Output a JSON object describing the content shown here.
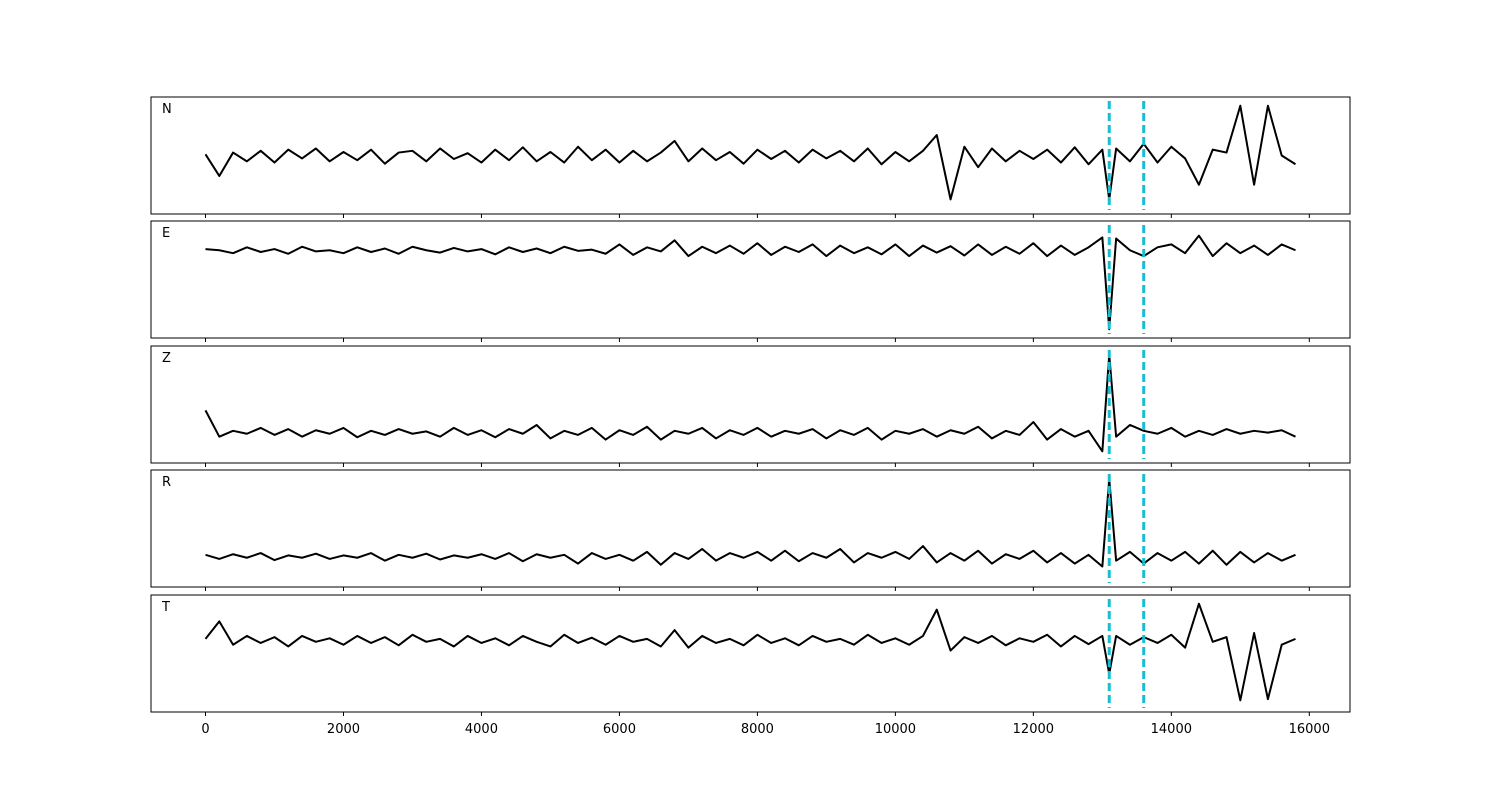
{
  "chart_data": {
    "type": "line",
    "x": [
      0,
      200,
      400,
      600,
      800,
      1000,
      1200,
      1400,
      1600,
      1800,
      2000,
      2200,
      2400,
      2600,
      2800,
      3000,
      3200,
      3400,
      3600,
      3800,
      4000,
      4200,
      4400,
      4600,
      4800,
      5000,
      5200,
      5400,
      5600,
      5800,
      6000,
      6200,
      6400,
      6600,
      6800,
      7000,
      7200,
      7400,
      7600,
      7800,
      8000,
      8200,
      8400,
      8600,
      8800,
      9000,
      9200,
      9400,
      9600,
      9800,
      10000,
      10200,
      10400,
      10600,
      10800,
      11000,
      11200,
      11400,
      11600,
      11800,
      12000,
      12200,
      12400,
      12600,
      12800,
      13000,
      13100,
      13200,
      13400,
      13600,
      13800,
      14000,
      14200,
      14400,
      14600,
      14800,
      15000,
      15200,
      15400,
      15600,
      15800
    ],
    "xlim": [
      -790,
      16590
    ],
    "xticks": [
      0,
      2000,
      4000,
      6000,
      8000,
      10000,
      12000,
      14000,
      16000
    ],
    "ylim": [
      -1,
      1
    ],
    "vlines": [
      13100,
      13600
    ],
    "vline_color": "#17becf",
    "series": [
      {
        "name": "N",
        "color": "#000000",
        "values": [
          0.02,
          -0.35,
          0.05,
          -0.1,
          0.08,
          -0.12,
          0.1,
          -0.05,
          0.12,
          -0.1,
          0.06,
          -0.08,
          0.1,
          -0.14,
          0.05,
          0.08,
          -0.1,
          0.12,
          -0.06,
          0.04,
          -0.12,
          0.1,
          -0.08,
          0.14,
          -0.1,
          0.06,
          -0.12,
          0.15,
          -0.08,
          0.1,
          -0.12,
          0.08,
          -0.1,
          0.05,
          0.25,
          -0.1,
          0.12,
          -0.08,
          0.06,
          -0.14,
          0.1,
          -0.06,
          0.08,
          -0.12,
          0.1,
          -0.05,
          0.08,
          -0.1,
          0.12,
          -0.15,
          0.06,
          -0.1,
          0.08,
          0.35,
          -0.75,
          0.15,
          -0.2,
          0.12,
          -0.1,
          0.08,
          -0.06,
          0.1,
          -0.12,
          0.14,
          -0.15,
          0.1,
          -0.75,
          0.12,
          -0.1,
          0.2,
          -0.12,
          0.15,
          -0.05,
          -0.5,
          0.1,
          0.05,
          0.85,
          -0.5,
          0.85,
          0.0,
          -0.15
        ]
      },
      {
        "name": "E",
        "color": "#000000",
        "values": [
          0.52,
          0.5,
          0.45,
          0.55,
          0.47,
          0.52,
          0.44,
          0.56,
          0.48,
          0.5,
          0.45,
          0.55,
          0.47,
          0.53,
          0.44,
          0.56,
          0.5,
          0.46,
          0.54,
          0.48,
          0.52,
          0.43,
          0.55,
          0.47,
          0.53,
          0.45,
          0.56,
          0.49,
          0.51,
          0.44,
          0.6,
          0.42,
          0.55,
          0.48,
          0.67,
          0.4,
          0.56,
          0.45,
          0.58,
          0.44,
          0.62,
          0.42,
          0.56,
          0.47,
          0.6,
          0.4,
          0.58,
          0.45,
          0.55,
          0.43,
          0.6,
          0.4,
          0.58,
          0.46,
          0.57,
          0.41,
          0.6,
          0.42,
          0.56,
          0.44,
          0.62,
          0.4,
          0.58,
          0.42,
          0.55,
          0.72,
          -0.85,
          0.7,
          0.5,
          0.4,
          0.55,
          0.6,
          0.45,
          0.75,
          0.4,
          0.62,
          0.45,
          0.58,
          0.42,
          0.6,
          0.5
        ]
      },
      {
        "name": "Z",
        "color": "#000000",
        "values": [
          -0.1,
          -0.55,
          -0.45,
          -0.5,
          -0.4,
          -0.52,
          -0.42,
          -0.55,
          -0.44,
          -0.5,
          -0.4,
          -0.56,
          -0.45,
          -0.52,
          -0.42,
          -0.5,
          -0.46,
          -0.55,
          -0.4,
          -0.52,
          -0.44,
          -0.56,
          -0.42,
          -0.5,
          -0.35,
          -0.58,
          -0.45,
          -0.52,
          -0.4,
          -0.6,
          -0.44,
          -0.52,
          -0.38,
          -0.6,
          -0.45,
          -0.5,
          -0.4,
          -0.58,
          -0.44,
          -0.52,
          -0.4,
          -0.55,
          -0.45,
          -0.5,
          -0.42,
          -0.58,
          -0.44,
          -0.52,
          -0.4,
          -0.6,
          -0.45,
          -0.5,
          -0.42,
          -0.55,
          -0.44,
          -0.5,
          -0.38,
          -0.58,
          -0.45,
          -0.52,
          -0.3,
          -0.6,
          -0.42,
          -0.55,
          -0.45,
          -0.8,
          0.85,
          -0.55,
          -0.35,
          -0.45,
          -0.5,
          -0.4,
          -0.55,
          -0.45,
          -0.52,
          -0.42,
          -0.5,
          -0.45,
          -0.48,
          -0.44,
          -0.55
        ]
      },
      {
        "name": "R",
        "color": "#000000",
        "values": [
          -0.45,
          -0.52,
          -0.44,
          -0.5,
          -0.42,
          -0.54,
          -0.46,
          -0.5,
          -0.43,
          -0.52,
          -0.46,
          -0.5,
          -0.42,
          -0.55,
          -0.45,
          -0.5,
          -0.43,
          -0.53,
          -0.46,
          -0.5,
          -0.44,
          -0.52,
          -0.42,
          -0.56,
          -0.44,
          -0.5,
          -0.45,
          -0.6,
          -0.42,
          -0.52,
          -0.45,
          -0.55,
          -0.4,
          -0.62,
          -0.42,
          -0.52,
          -0.35,
          -0.55,
          -0.42,
          -0.5,
          -0.4,
          -0.55,
          -0.38,
          -0.56,
          -0.42,
          -0.5,
          -0.35,
          -0.58,
          -0.42,
          -0.5,
          -0.4,
          -0.52,
          -0.3,
          -0.58,
          -0.42,
          -0.55,
          -0.38,
          -0.6,
          -0.44,
          -0.52,
          -0.38,
          -0.58,
          -0.42,
          -0.6,
          -0.45,
          -0.65,
          0.85,
          -0.55,
          -0.4,
          -0.6,
          -0.42,
          -0.55,
          -0.4,
          -0.6,
          -0.38,
          -0.62,
          -0.4,
          -0.58,
          -0.42,
          -0.55,
          -0.45
        ]
      },
      {
        "name": "T",
        "color": "#000000",
        "values": [
          0.25,
          0.55,
          0.15,
          0.3,
          0.18,
          0.28,
          0.12,
          0.3,
          0.2,
          0.26,
          0.15,
          0.3,
          0.18,
          0.28,
          0.14,
          0.32,
          0.2,
          0.25,
          0.12,
          0.3,
          0.18,
          0.26,
          0.14,
          0.3,
          0.2,
          0.12,
          0.32,
          0.18,
          0.27,
          0.15,
          0.3,
          0.2,
          0.25,
          0.12,
          0.4,
          0.1,
          0.3,
          0.18,
          0.25,
          0.14,
          0.32,
          0.18,
          0.26,
          0.14,
          0.3,
          0.2,
          0.25,
          0.15,
          0.32,
          0.18,
          0.26,
          0.15,
          0.3,
          0.75,
          0.05,
          0.28,
          0.18,
          0.3,
          0.14,
          0.26,
          0.2,
          0.32,
          0.12,
          0.3,
          0.16,
          0.3,
          -0.35,
          0.3,
          0.15,
          0.28,
          0.18,
          0.32,
          0.1,
          0.85,
          0.2,
          0.28,
          -0.8,
          0.35,
          -0.78,
          0.15,
          0.25
        ]
      }
    ]
  }
}
